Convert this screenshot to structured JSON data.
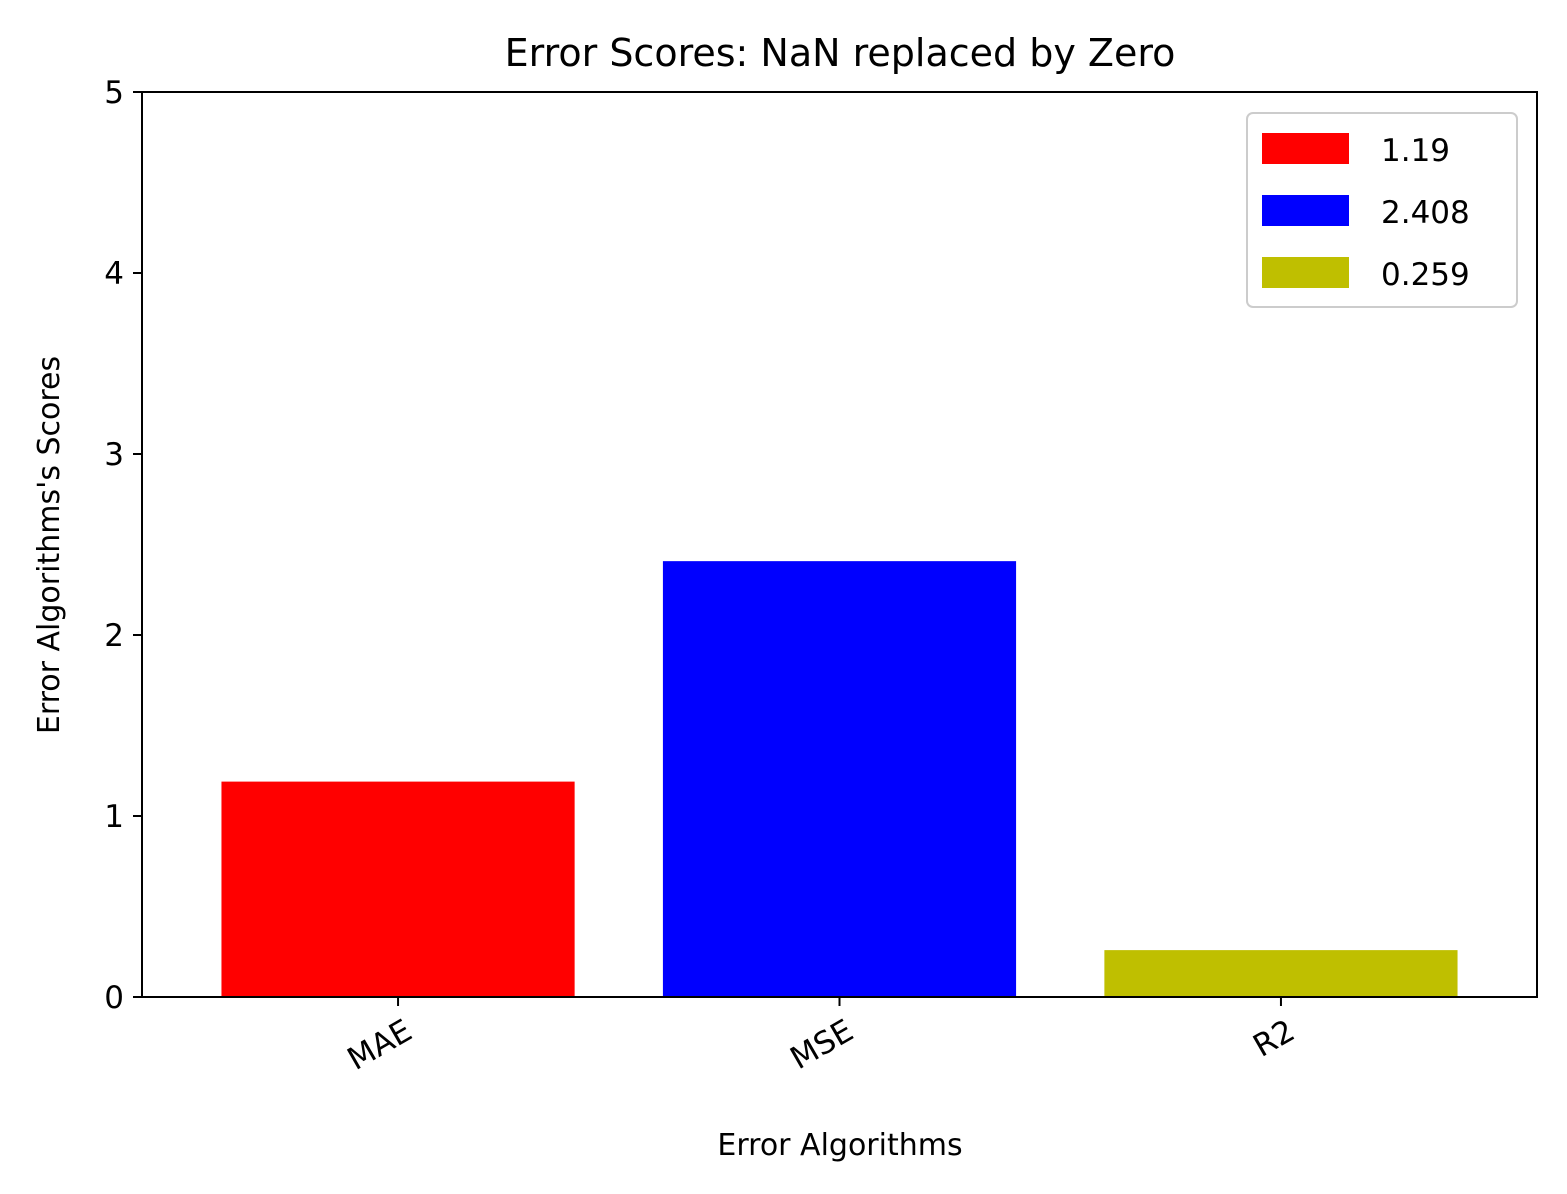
{
  "chart_data": {
    "type": "bar",
    "title": "Error Scores: NaN replaced by Zero",
    "xlabel": "Error Algorithms",
    "ylabel": "Error Algorithms's Scores",
    "categories": [
      "MAE",
      "MSE",
      "R2"
    ],
    "values": [
      1.19,
      2.408,
      0.259
    ],
    "colors": [
      "#ff0000",
      "#0000ff",
      "#bfbf00"
    ],
    "ylim": [
      0,
      5
    ],
    "yticks": [
      "0",
      "1",
      "2",
      "3",
      "4",
      "5"
    ],
    "grid": false,
    "legend": {
      "position": "top-right",
      "entries": [
        {
          "label": "1.19",
          "color": "#ff0000"
        },
        {
          "label": "2.408",
          "color": "#0000ff"
        },
        {
          "label": "0.259",
          "color": "#bfbf00"
        }
      ]
    }
  }
}
